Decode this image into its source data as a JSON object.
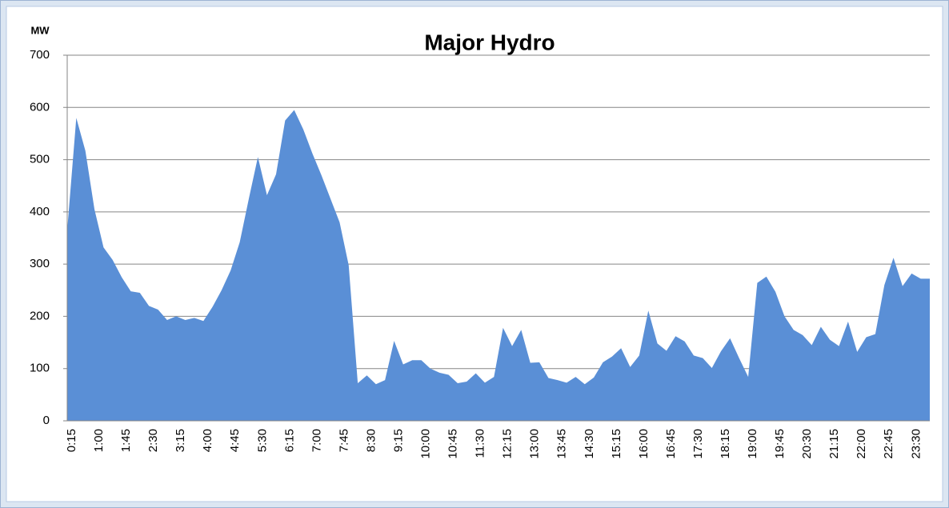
{
  "chart_data": {
    "type": "area",
    "title": "Major Hydro",
    "y_axis_label": "MW",
    "categories": [
      "0:15",
      null,
      null,
      "1:00",
      null,
      null,
      "1:45",
      null,
      null,
      "2:30",
      null,
      null,
      "3:15",
      null,
      null,
      "4:00",
      null,
      null,
      "4:45",
      null,
      null,
      "5:30",
      null,
      null,
      "6:15",
      null,
      null,
      "7:00",
      null,
      null,
      "7:45",
      null,
      null,
      "8:30",
      null,
      null,
      "9:15",
      null,
      null,
      "10:00",
      null,
      null,
      "10:45",
      null,
      null,
      "11:30",
      null,
      null,
      "12:15",
      null,
      null,
      "13:00",
      null,
      null,
      "13:45",
      null,
      null,
      "14:30",
      null,
      null,
      "15:15",
      null,
      null,
      "16:00",
      null,
      null,
      "16:45",
      null,
      null,
      "17:30",
      null,
      null,
      "18:15",
      null,
      null,
      "19:00",
      null,
      null,
      "19:45",
      null,
      null,
      "20:30",
      null,
      null,
      "21:15",
      null,
      null,
      "22:00",
      null,
      null,
      "22:45",
      null,
      null,
      "23:30",
      null,
      null
    ],
    "values": [
      365,
      580,
      517,
      405,
      332,
      308,
      275,
      248,
      245,
      220,
      213,
      193,
      200,
      193,
      197,
      191,
      218,
      250,
      288,
      342,
      425,
      505,
      432,
      472,
      575,
      595,
      558,
      512,
      470,
      425,
      380,
      298,
      72,
      87,
      70,
      78,
      153,
      108,
      116,
      116,
      100,
      92,
      88,
      72,
      75,
      91,
      73,
      84,
      178,
      143,
      174,
      111,
      112,
      82,
      78,
      73,
      84,
      70,
      83,
      112,
      123,
      139,
      103,
      125,
      211,
      148,
      134,
      162,
      152,
      125,
      120,
      101,
      133,
      158,
      120,
      84,
      264,
      276,
      247,
      200,
      174,
      164,
      145,
      180,
      155,
      143,
      190,
      132,
      160,
      166,
      260,
      312,
      258,
      282,
      272,
      272
    ],
    "color": "#5a8fd6",
    "ylim": [
      0,
      700
    ],
    "yticks": [
      0,
      100,
      200,
      300,
      400,
      500,
      600,
      700
    ],
    "grid": true
  }
}
